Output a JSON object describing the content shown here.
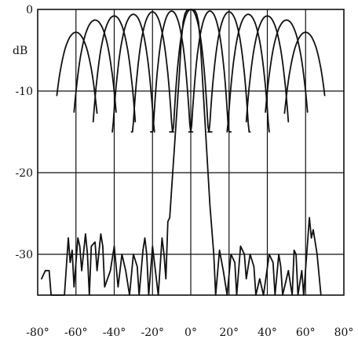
{
  "chart_data": {
    "type": "line",
    "title": "",
    "xlabel": "",
    "ylabel": "dB",
    "xlim": [
      -80,
      80
    ],
    "ylim": [
      -35,
      0
    ],
    "x_ticks": [
      -80,
      -60,
      -40,
      -20,
      0,
      20,
      40,
      60,
      80
    ],
    "x_tick_labels": [
      "-80°",
      "-60°",
      "-40°",
      "-20°",
      "0°",
      "20°",
      "40°",
      "60°",
      "80°"
    ],
    "y_ticks": [
      0,
      -10,
      -20,
      -30
    ],
    "y_tick_labels": [
      "0",
      "-10",
      "-20",
      "-30"
    ],
    "grid": true,
    "beams": [
      {
        "peak_angle": -60,
        "peak_level": -2.8
      },
      {
        "peak_angle": -50,
        "peak_level": -1.3
      },
      {
        "peak_angle": -40,
        "peak_level": -0.8
      },
      {
        "peak_angle": -30,
        "peak_level": -0.6
      },
      {
        "peak_angle": -20,
        "peak_level": -0.3
      },
      {
        "peak_angle": -10,
        "peak_level": -0.2
      },
      {
        "peak_angle": 0,
        "peak_level": 0
      },
      {
        "peak_angle": 10,
        "peak_level": -0.2
      },
      {
        "peak_angle": 20,
        "peak_level": -0.3
      },
      {
        "peak_angle": 30,
        "peak_level": -0.6
      },
      {
        "peak_angle": 40,
        "peak_level": -0.8
      },
      {
        "peak_angle": 50,
        "peak_level": -1.3
      },
      {
        "peak_angle": 60,
        "peak_level": -2.8
      }
    ],
    "main_beam_pattern": [
      [
        -78,
        -33
      ],
      [
        -76,
        -32
      ],
      [
        -74,
        -32
      ],
      [
        -73,
        -35
      ],
      [
        -66,
        -35
      ],
      [
        -64,
        -28
      ],
      [
        -63,
        -31
      ],
      [
        -62,
        -29.5
      ],
      [
        -61,
        -34
      ],
      [
        -59,
        -28
      ],
      [
        -58,
        -29
      ],
      [
        -57,
        -32
      ],
      [
        -55,
        -27.5
      ],
      [
        -54,
        -30
      ],
      [
        -53,
        -35
      ],
      [
        -52,
        -29
      ],
      [
        -50,
        -28.5
      ],
      [
        -49,
        -32
      ],
      [
        -47,
        -27.5
      ],
      [
        -46,
        -29
      ],
      [
        -45,
        -34
      ],
      [
        -42,
        -32
      ],
      [
        -40,
        -29
      ],
      [
        -38,
        -34
      ],
      [
        -36,
        -30
      ],
      [
        -34,
        -32
      ],
      [
        -32,
        -35
      ],
      [
        -30,
        -30
      ],
      [
        -28,
        -31.5
      ],
      [
        -27,
        -35
      ],
      [
        -25,
        -29.5
      ],
      [
        -24,
        -28
      ],
      [
        -23,
        -30
      ],
      [
        -22,
        -35
      ],
      [
        -20,
        -29
      ],
      [
        -19,
        -31
      ],
      [
        -17,
        -35
      ],
      [
        -15,
        -28
      ],
      [
        -14,
        -30
      ],
      [
        -13,
        -33
      ],
      [
        -12,
        -26
      ],
      [
        -11,
        -25.5
      ],
      [
        -10,
        -22
      ],
      [
        -8,
        -15
      ],
      [
        -6,
        -8
      ],
      [
        -5,
        -4
      ],
      [
        -4,
        -1.5
      ],
      [
        -3,
        -0.5
      ],
      [
        -2,
        -0.1
      ],
      [
        0,
        0
      ],
      [
        2,
        -0.1
      ],
      [
        3,
        -0.5
      ],
      [
        4,
        -1.5
      ],
      [
        5,
        -4
      ],
      [
        6,
        -8
      ],
      [
        8,
        -16
      ],
      [
        10,
        -24
      ],
      [
        12,
        -30
      ],
      [
        13,
        -35
      ],
      [
        15,
        -29.5
      ],
      [
        17,
        -32
      ],
      [
        19,
        -35
      ],
      [
        21,
        -30
      ],
      [
        23,
        -31
      ],
      [
        24,
        -35
      ],
      [
        26,
        -29
      ],
      [
        28,
        -30
      ],
      [
        29,
        -33
      ],
      [
        31,
        -30
      ],
      [
        33,
        -31.5
      ],
      [
        34,
        -35
      ],
      [
        36,
        -33
      ],
      [
        38,
        -35
      ],
      [
        41,
        -30
      ],
      [
        43,
        -31
      ],
      [
        44,
        -35
      ],
      [
        46,
        -30
      ],
      [
        47,
        -31.5
      ],
      [
        48,
        -35
      ],
      [
        51,
        -32
      ],
      [
        53,
        -35
      ],
      [
        54,
        -29.5
      ],
      [
        55,
        -30
      ],
      [
        56,
        -35
      ],
      [
        58,
        -32
      ],
      [
        59,
        -35
      ],
      [
        62,
        -25.5
      ],
      [
        63,
        -28
      ],
      [
        64,
        -27
      ],
      [
        66,
        -30
      ],
      [
        68,
        -35
      ]
    ]
  }
}
